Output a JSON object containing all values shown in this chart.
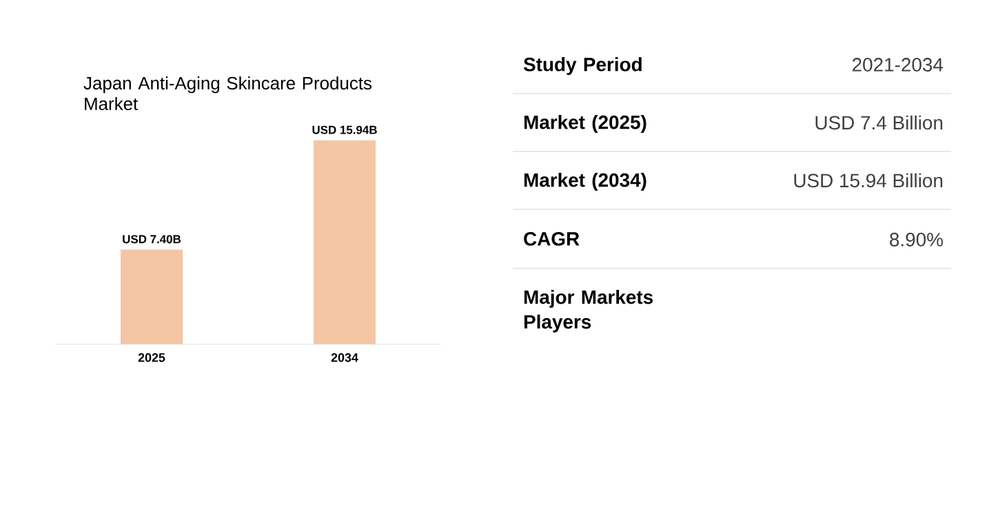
{
  "chart_data": [
    {
      "type": "bar",
      "title": "Japan Anti-Aging Skincare Products Market",
      "categories": [
        "2025",
        "2034"
      ],
      "values": [
        7400000000,
        15940000000
      ],
      "value_labels": [
        "USD 7.40B",
        "USD 15.94B"
      ],
      "color": "#f5c6a5"
    },
    {
      "type": "other",
      "categories": [
        "Study Period",
        "Market (2025)",
        "Market (2034)",
        "CAGR",
        "Major Markets Players"
      ],
      "annotations": [
        "2021-2034",
        "USD 7.4 Billion",
        "USD 15.94 Billion",
        "8.90%"
      ]
    }
  ]
}
